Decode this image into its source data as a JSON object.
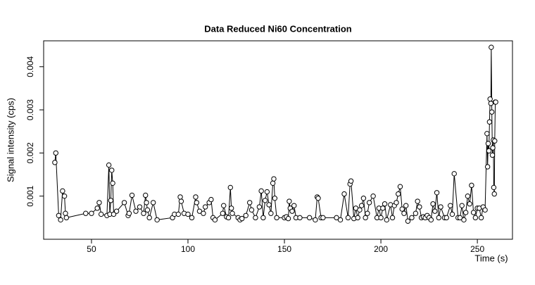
{
  "chart_data": {
    "type": "line",
    "title": "Data Reduced Ni60 Concentration",
    "x_label": "Time (s)",
    "y_label": "Signal intensity (cps)",
    "xlim": [
      25.2,
      268.2
    ],
    "ylim": [
      0,
      0.0046
    ],
    "xticks": [
      50,
      100,
      150,
      200,
      250
    ],
    "yticks": [
      0.001,
      0.002,
      0.003,
      0.004
    ],
    "color": "#000000",
    "x": [
      31,
      31.5,
      33,
      34,
      35,
      36,
      36.5,
      37,
      47,
      50,
      53,
      54,
      55,
      58,
      59,
      59.5,
      60,
      60.5,
      61,
      61.5,
      63,
      67,
      69,
      69.5,
      71,
      73,
      75,
      77,
      78,
      78.5,
      79,
      80,
      82,
      84,
      92,
      93,
      95,
      96,
      96.5,
      98,
      100,
      102,
      104,
      104.5,
      106,
      108,
      109,
      111,
      112,
      113,
      114,
      118,
      118.5,
      120,
      121,
      122,
      122.5,
      123,
      126,
      127,
      128,
      130,
      132,
      133,
      135,
      137,
      138,
      139,
      140,
      141,
      142,
      143,
      144,
      144.5,
      145,
      146,
      150,
      151,
      152,
      152.5,
      153,
      154,
      155,
      156,
      158,
      163,
      166,
      167,
      167.5,
      169,
      170,
      177,
      179,
      181,
      183,
      184,
      184.5,
      186,
      187,
      188,
      189,
      190,
      191,
      192,
      193,
      194,
      196,
      198,
      199,
      200,
      201,
      202,
      203,
      205,
      206,
      207,
      208,
      209,
      210,
      211,
      212,
      213,
      214,
      216,
      218,
      219,
      220,
      221,
      222,
      223,
      224,
      225,
      226,
      227,
      228,
      229,
      230,
      231,
      233,
      234,
      236,
      237,
      238,
      240,
      241,
      242,
      243,
      244,
      245,
      246,
      247,
      248,
      249,
      250,
      251,
      252,
      253,
      254,
      255,
      255.3,
      255.6,
      256,
      256.3,
      256.6,
      257,
      257.2,
      257.5,
      257.8,
      258,
      258.3,
      258.5,
      258.8,
      259,
      259.3,
      259.5
    ],
    "values": [
      0.00178,
      0.002,
      0.00055,
      0.00045,
      0.00112,
      0.001,
      0.0006,
      0.0005,
      0.0006,
      0.0006,
      0.00072,
      0.00085,
      0.00058,
      0.00055,
      0.00172,
      0.00058,
      0.0009,
      0.0016,
      0.0013,
      0.00058,
      0.00065,
      0.00085,
      0.00055,
      0.0006,
      0.00102,
      0.00065,
      0.00075,
      0.0006,
      0.00102,
      0.00085,
      0.00068,
      0.0005,
      0.00085,
      0.00045,
      0.0005,
      0.00058,
      0.00058,
      0.00098,
      0.00088,
      0.0006,
      0.00058,
      0.0005,
      0.00098,
      0.00085,
      0.00065,
      0.0006,
      0.00075,
      0.00085,
      0.00092,
      0.0005,
      0.00045,
      0.0006,
      0.00078,
      0.00052,
      0.0005,
      0.0012,
      0.00072,
      0.0006,
      0.0005,
      0.00045,
      0.00048,
      0.00055,
      0.00085,
      0.00068,
      0.0005,
      0.00075,
      0.00112,
      0.0005,
      0.0009,
      0.0011,
      0.0008,
      0.0006,
      0.0013,
      0.0014,
      0.00095,
      0.0005,
      0.0005,
      0.00052,
      0.00048,
      0.00088,
      0.00072,
      0.00065,
      0.00078,
      0.0005,
      0.0005,
      0.0005,
      0.00045,
      0.00098,
      0.00095,
      0.0005,
      0.0005,
      0.0005,
      0.00045,
      0.00105,
      0.0005,
      0.00128,
      0.00135,
      0.00048,
      0.00072,
      0.0005,
      0.00068,
      0.00078,
      0.00095,
      0.0005,
      0.0006,
      0.00085,
      0.001,
      0.0005,
      0.00072,
      0.0005,
      0.00072,
      0.00082,
      0.00045,
      0.0008,
      0.0005,
      0.00078,
      0.00085,
      0.00105,
      0.00122,
      0.0007,
      0.0006,
      0.00078,
      0.00042,
      0.0005,
      0.0006,
      0.00088,
      0.00075,
      0.0005,
      0.00052,
      0.0005,
      0.00055,
      0.0005,
      0.00045,
      0.00082,
      0.00065,
      0.00108,
      0.0005,
      0.00075,
      0.0005,
      0.0005,
      0.00078,
      0.00058,
      0.00152,
      0.0005,
      0.0005,
      0.00078,
      0.00045,
      0.00062,
      0.001,
      0.00082,
      0.00125,
      0.00062,
      0.0005,
      0.00072,
      0.00072,
      0.0005,
      0.00075,
      0.00068,
      0.00245,
      0.00168,
      0.00222,
      0.00205,
      0.00272,
      0.00325,
      0.00315,
      0.00445,
      0.00295,
      0.00195,
      0.00212,
      0.0023,
      0.0012,
      0.00105,
      0.00228,
      0.00318,
      0.00318
    ]
  }
}
